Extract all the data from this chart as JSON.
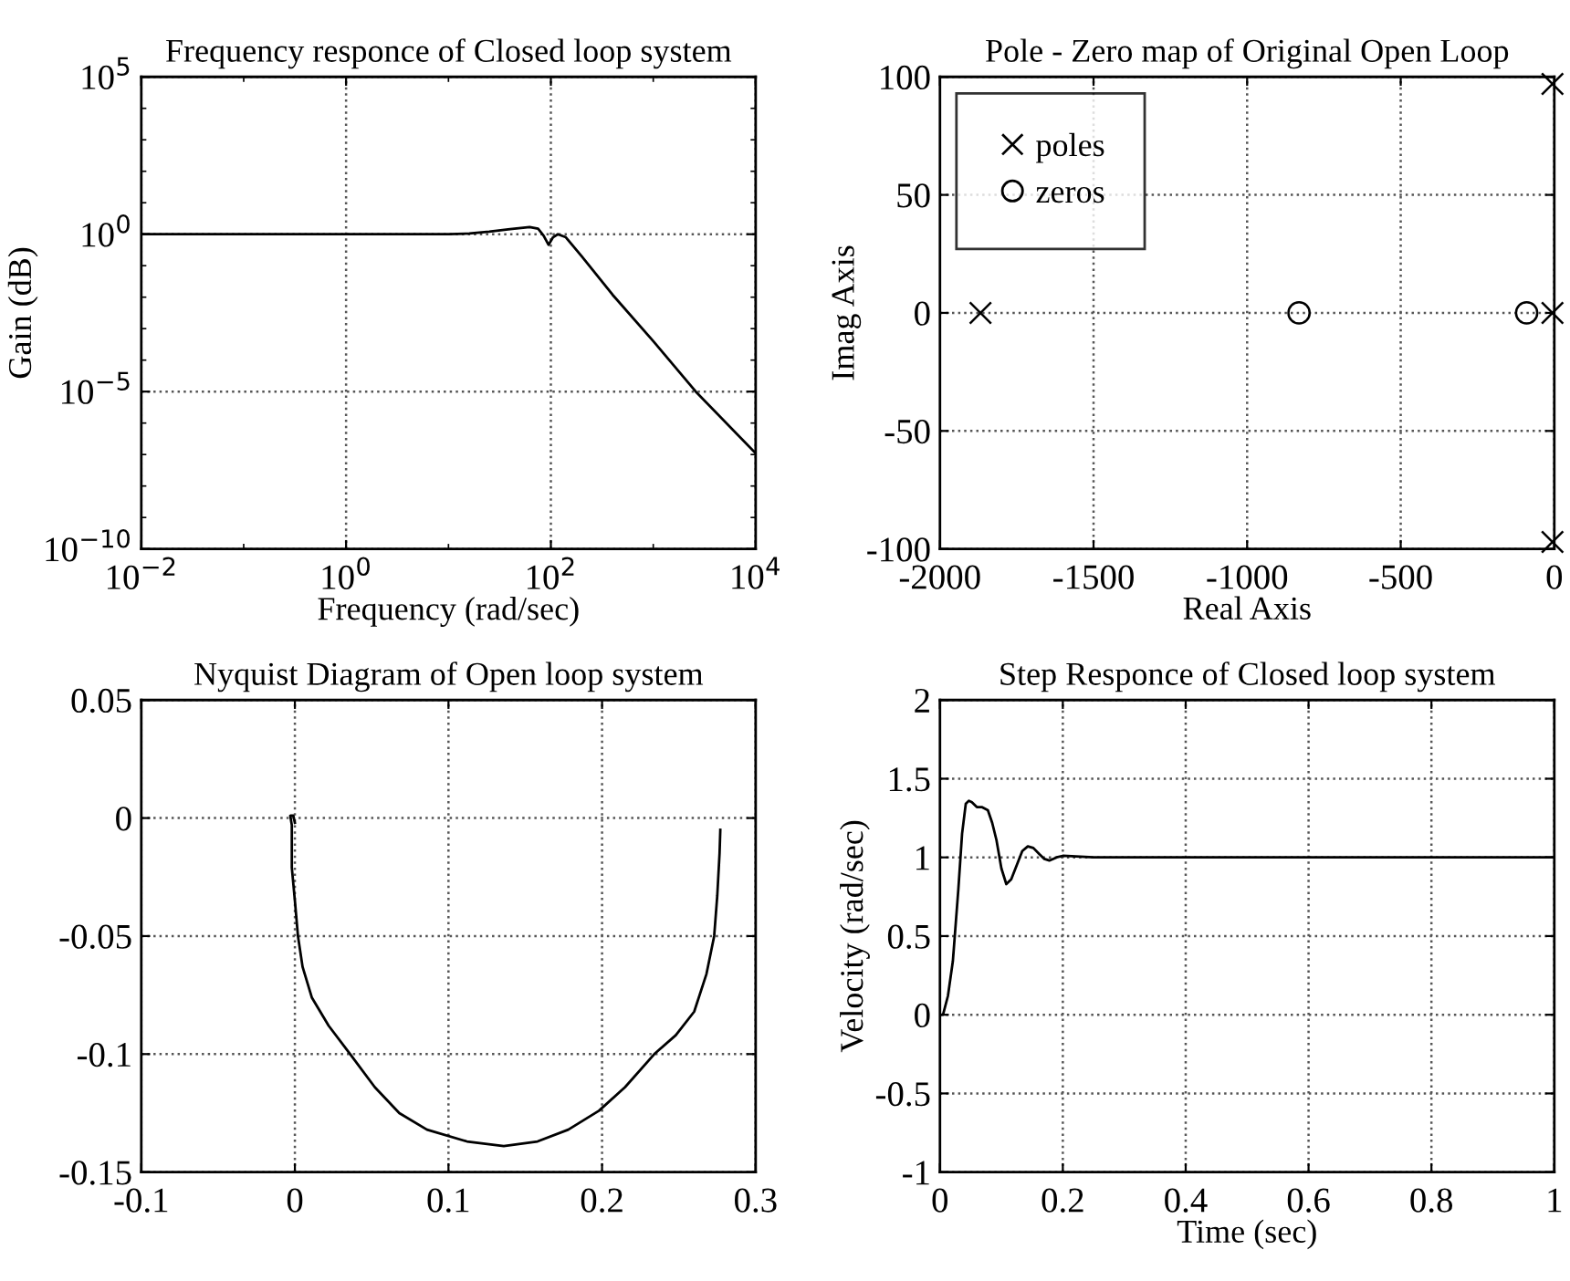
{
  "chart_data": [
    {
      "type": "line",
      "title": "Frequency responce of Closed loop system",
      "xlabel": "Frequency (rad/sec)",
      "ylabel": "Gain (dB)",
      "log": "xy",
      "grid": true,
      "xlim": [
        0.01,
        10000
      ],
      "ylim": [
        1e-10,
        100000
      ],
      "xticks": [
        {
          "value": 0.01,
          "label": "10$^{−2}$"
        },
        {
          "value": 1,
          "label": "10$^{0}$"
        },
        {
          "value": 100,
          "label": "10$^{2}$"
        },
        {
          "value": 10000,
          "label": "10$^{4}$"
        }
      ],
      "yticks": [
        {
          "value": 1e-10,
          "label": "10$^{−10}$"
        },
        {
          "value": 1e-05,
          "label": "10$^{−5}$"
        },
        {
          "value": 1,
          "label": "10$^{0}$"
        },
        {
          "value": 100000,
          "label": "10$^{5}$"
        }
      ],
      "series": [
        {
          "color": "#000000",
          "x": [
            0.01,
            1,
            10,
            16,
            25,
            40,
            62,
            75,
            85,
            95,
            105,
            117,
            140,
            200,
            400,
            1000,
            2600,
            10000
          ],
          "values": [
            1,
            1,
            1,
            1.05,
            1.2,
            1.45,
            1.7,
            1.5,
            0.9,
            0.46,
            0.8,
            1,
            0.8,
            0.2,
            0.012,
            0.0004,
            1e-05,
            1.1e-07
          ]
        }
      ]
    },
    {
      "type": "scatter",
      "title": "Pole - Zero map of Original Open Loop",
      "xlabel": "Real Axis",
      "ylabel": "Imag Axis",
      "grid": true,
      "legend": "top left",
      "xlim": [
        -2000,
        0
      ],
      "ylim": [
        -100,
        100
      ],
      "xticks": [
        -2000,
        -1500,
        -1000,
        -500,
        0
      ],
      "yticks": [
        -100,
        -50,
        0,
        50,
        100
      ],
      "series": [
        {
          "name": "poles",
          "color": "#000000",
          "marker": "cross",
          "x": [
            -1868,
            -6,
            -6,
            -6
          ],
          "values": [
            0,
            0,
            97,
            -97
          ]
        },
        {
          "name": "zeros",
          "color": "#000000",
          "marker": "circle",
          "x": [
            -831,
            -90
          ],
          "values": [
            0,
            0
          ]
        }
      ]
    },
    {
      "type": "line",
      "title": "Nyquist Diagram of Open loop system",
      "grid": true,
      "xlim": [
        -0.1,
        0.3
      ],
      "ylim": [
        -0.15,
        0.05
      ],
      "xticks": [
        -0.1,
        0,
        0.1,
        0.2,
        0.3
      ],
      "yticks": [
        -0.15,
        -0.1,
        -0.05,
        0,
        0.05
      ],
      "series": [
        {
          "color": "#000000",
          "x": [
            0.277,
            0.2765,
            0.275,
            0.273,
            0.268,
            0.26,
            0.248,
            0.234,
            0.215,
            0.198,
            0.178,
            0.158,
            0.136,
            0.112,
            0.086,
            0.068,
            0.052,
            0.036,
            0.022,
            0.011,
            0.005,
            0.002,
            0.0,
            -0.002,
            -0.002,
            -0.003,
            -0.001,
            0.0
          ],
          "values": [
            -0.005,
            -0.015,
            -0.033,
            -0.05,
            -0.066,
            -0.082,
            -0.092,
            -0.1,
            -0.114,
            -0.124,
            -0.132,
            -0.137,
            -0.139,
            -0.137,
            -0.132,
            -0.125,
            -0.114,
            -0.1,
            -0.088,
            -0.076,
            -0.063,
            -0.05,
            -0.035,
            -0.021,
            -0.003,
            0.001,
            0.001,
            -0.002
          ]
        }
      ]
    },
    {
      "type": "line",
      "title": "Step Responce of Closed loop system",
      "xlabel": "Time (sec)",
      "ylabel": "Velocity (rad/sec)",
      "grid": true,
      "xlim": [
        0,
        1
      ],
      "ylim": [
        -1,
        2
      ],
      "xticks": [
        0,
        0.2,
        0.4,
        0.6,
        0.8,
        1
      ],
      "yticks": [
        -1,
        -0.5,
        0,
        0.5,
        1,
        1.5,
        2
      ],
      "series": [
        {
          "color": "#000000",
          "x": [
            0,
            0.005,
            0.013,
            0.021,
            0.03,
            0.036,
            0.042,
            0.047,
            0.052,
            0.06,
            0.068,
            0.078,
            0.085,
            0.092,
            0.1,
            0.108,
            0.116,
            0.125,
            0.134,
            0.143,
            0.152,
            0.162,
            0.17,
            0.178,
            0.19,
            0.2,
            0.25,
            1
          ],
          "values": [
            0,
            0.0,
            0.12,
            0.34,
            0.8,
            1.15,
            1.34,
            1.36,
            1.35,
            1.32,
            1.32,
            1.3,
            1.22,
            1.11,
            0.93,
            0.83,
            0.86,
            0.95,
            1.04,
            1.07,
            1.06,
            1.02,
            0.99,
            0.98,
            1.0,
            1.01,
            1.0,
            1.0
          ]
        }
      ]
    }
  ]
}
